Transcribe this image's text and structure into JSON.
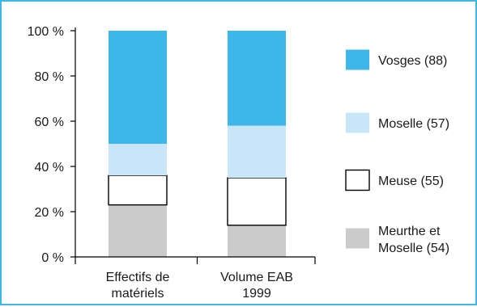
{
  "chart_data": {
    "type": "bar",
    "stacked": true,
    "categories": [
      [
        "Effectifs de",
        "matériels"
      ],
      [
        "Volume EAB",
        "1999"
      ]
    ],
    "y_ticks": [
      "0 %",
      "20 %",
      "40 %",
      "60 %",
      "80 %",
      "100 %"
    ],
    "ylim": [
      0,
      100
    ],
    "grid": false,
    "legend_position": "right",
    "series": [
      {
        "name": "Meurthe et Moselle (54)",
        "label_lines": [
          "Meurthe et",
          "Moselle (54)"
        ],
        "color": "#cbcbcb",
        "values": [
          23,
          14
        ]
      },
      {
        "name": "Meuse (55)",
        "label_lines": [
          "Meuse (55)"
        ],
        "color": "#ffffff",
        "values": [
          13,
          21
        ]
      },
      {
        "name": "Moselle (57)",
        "label_lines": [
          "Moselle (57)"
        ],
        "color": "#c9e6f8",
        "values": [
          14,
          23
        ]
      },
      {
        "name": "Vosges (88)",
        "label_lines": [
          "Vosges (88)"
        ],
        "color": "#3db6e9",
        "values": [
          50,
          42
        ]
      }
    ],
    "legend_order": [
      3,
      2,
      1,
      0
    ]
  }
}
